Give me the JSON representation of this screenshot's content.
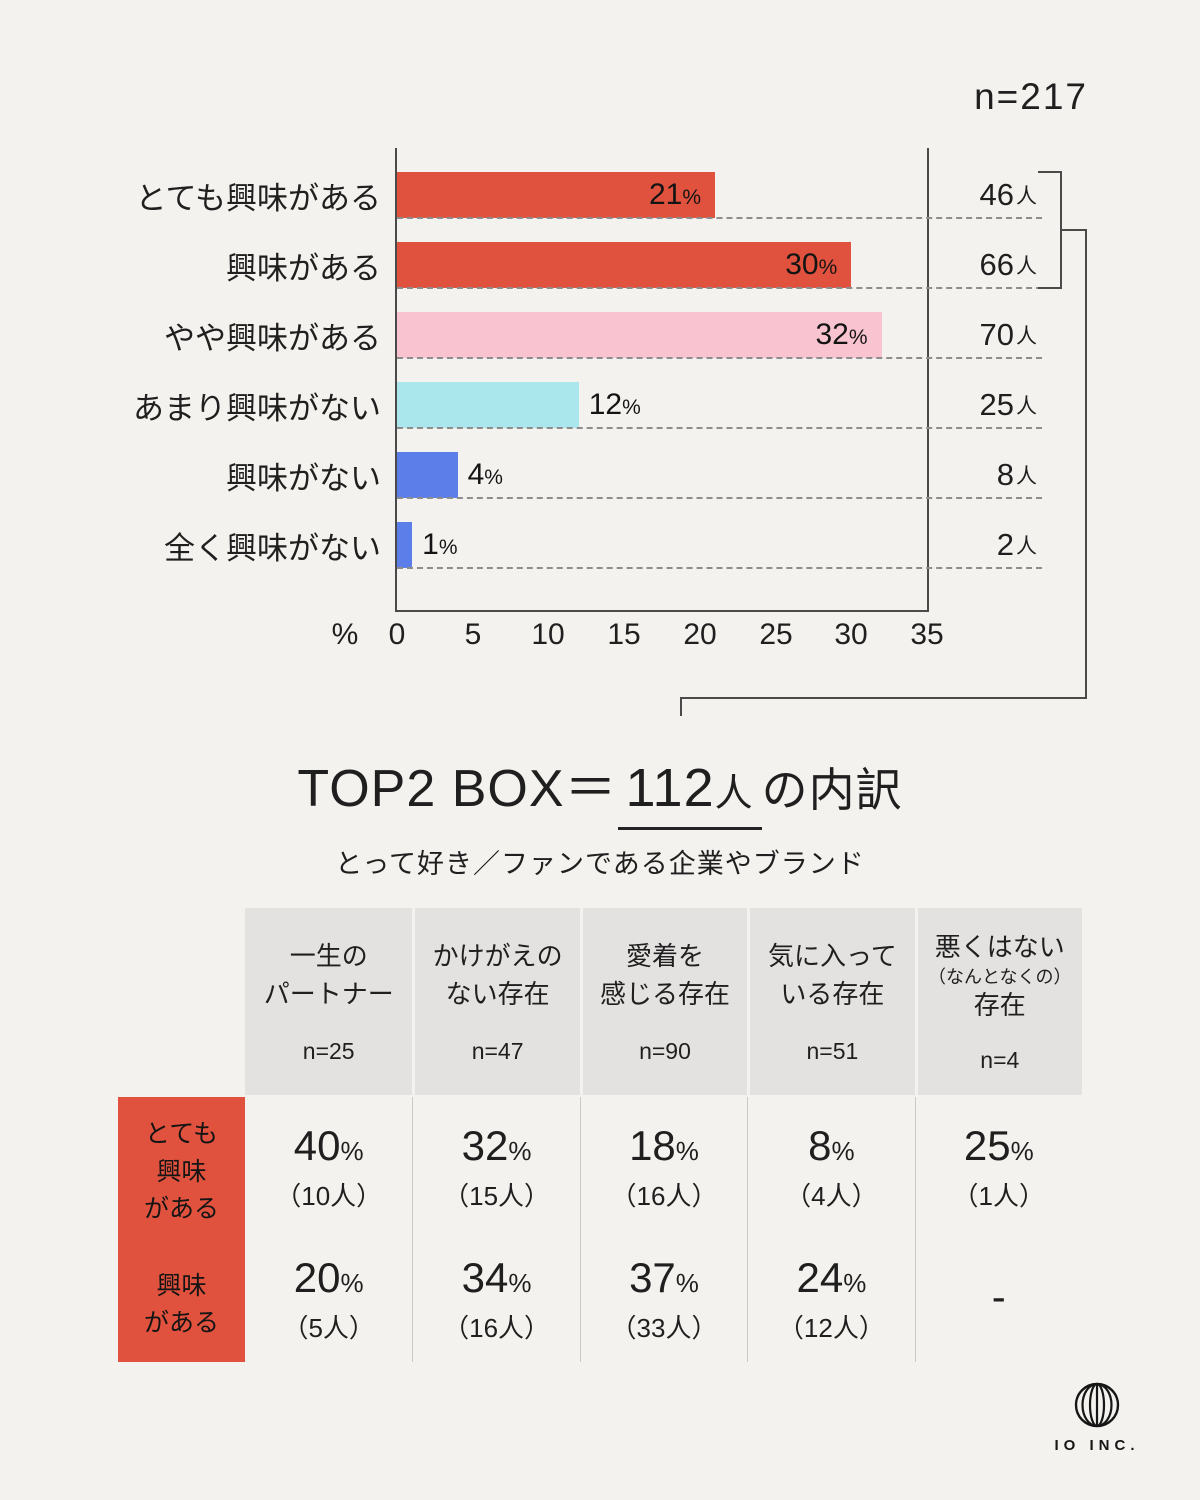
{
  "page": {
    "background": "#f4f2ee"
  },
  "chart_data": {
    "type": "bar",
    "orientation": "horizontal",
    "title": "",
    "sample_label": "n=217",
    "unit": "%",
    "person_unit": "人",
    "categories": [
      "とても興味がある",
      "興味がある",
      "やや興味がある",
      "あまり興味がない",
      "興味がない",
      "全く興味がない"
    ],
    "values": [
      21,
      30,
      32,
      12,
      4,
      1
    ],
    "counts": [
      46,
      66,
      70,
      25,
      8,
      2
    ],
    "bar_colors": [
      "#e0523d",
      "#e0523d",
      "#f9c4d0",
      "#aae7ed",
      "#5b7ee9",
      "#5b7ee9"
    ],
    "xlim": [
      0,
      35
    ],
    "x_ticks": [
      "0",
      "5",
      "10",
      "15",
      "20",
      "25",
      "30",
      "35"
    ],
    "xlabel": "%",
    "grid": "dashed-row-separators",
    "legend": "none"
  },
  "top2": {
    "prefix": "TOP2 BOX＝",
    "count": "112",
    "count_unit": "人",
    "suffix": "の内訳",
    "subtitle": "とって好き／ファンである企業やブランド"
  },
  "table": {
    "header_bg": "#e4e2e0",
    "row_header_color": "#e0523d",
    "columns": [
      {
        "title": "一生の\nパートナー",
        "note": "",
        "title2": "",
        "n": "n=25"
      },
      {
        "title": "かけがえの\nない存在",
        "note": "",
        "title2": "",
        "n": "n=47"
      },
      {
        "title": "愛着を\n感じる存在",
        "note": "",
        "title2": "",
        "n": "n=90"
      },
      {
        "title": "気に入って\nいる存在",
        "note": "",
        "title2": "",
        "n": "n=51"
      },
      {
        "title": "悪くはない",
        "note": "（なんとなくの）",
        "title2": "存在",
        "n": "n=4"
      }
    ],
    "rows": [
      {
        "label": "とても\n興味\nがある",
        "cells": [
          {
            "value": "40",
            "unit": "%",
            "count": "（10人）"
          },
          {
            "value": "32",
            "unit": "%",
            "count": "（15人）"
          },
          {
            "value": "18",
            "unit": "%",
            "count": "（16人）"
          },
          {
            "value": "8",
            "unit": "%",
            "count": "（4人）"
          },
          {
            "value": "25",
            "unit": "%",
            "count": "（1人）"
          }
        ]
      },
      {
        "label": "興味\nがある",
        "cells": [
          {
            "value": "20",
            "unit": "%",
            "count": "（5人）"
          },
          {
            "value": "34",
            "unit": "%",
            "count": "（16人）"
          },
          {
            "value": "37",
            "unit": "%",
            "count": "（33人）"
          },
          {
            "value": "24",
            "unit": "%",
            "count": "（12人）"
          },
          {
            "value": "-",
            "unit": "",
            "count": ""
          }
        ]
      }
    ]
  },
  "logo": {
    "text": "IO INC."
  }
}
